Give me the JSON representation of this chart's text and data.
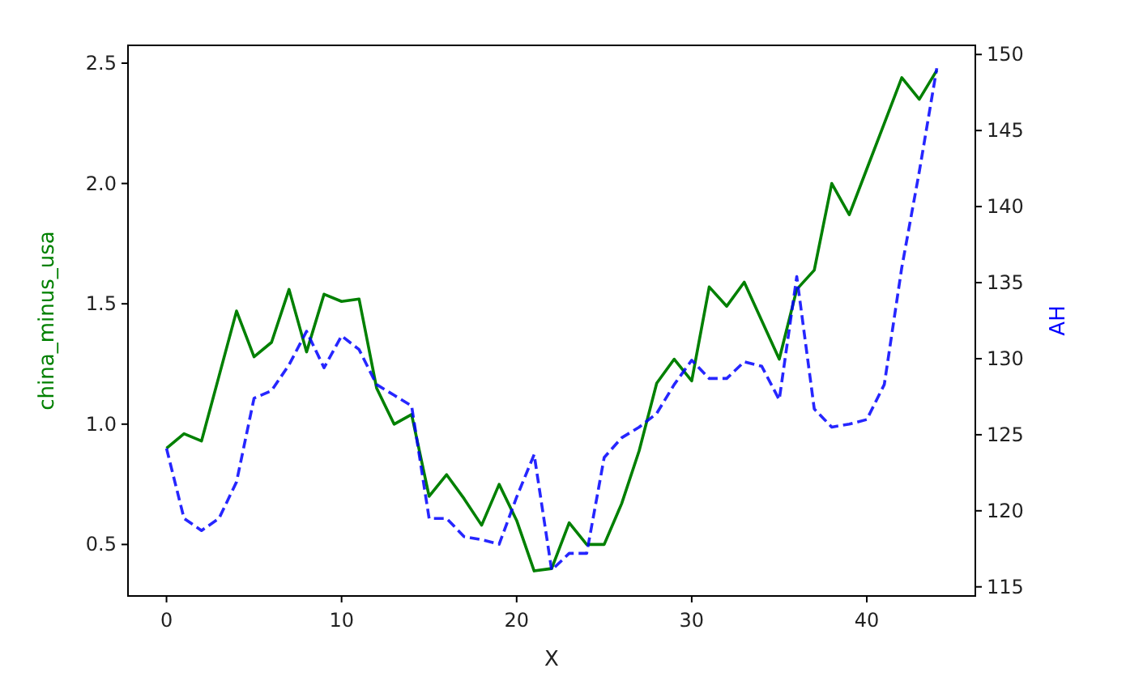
{
  "chart_data": {
    "type": "line",
    "xlabel": "X",
    "ylabel": "china_minus_usa",
    "y2label": "AH",
    "x": [
      0,
      1,
      2,
      3,
      4,
      5,
      6,
      7,
      8,
      9,
      10,
      11,
      12,
      13,
      14,
      15,
      16,
      17,
      18,
      19,
      20,
      21,
      22,
      23,
      24,
      25,
      26,
      27,
      28,
      29,
      30,
      31,
      32,
      33,
      34,
      35,
      36,
      37,
      38,
      39,
      40,
      41,
      42,
      43,
      44
    ],
    "series": [
      {
        "color": "#008000",
        "line_style": "solid",
        "values": [
          0.9,
          0.96,
          0.93,
          1.2,
          1.47,
          1.28,
          1.34,
          1.56,
          1.3,
          1.54,
          1.51,
          1.52,
          1.15,
          1.0,
          1.04,
          0.7,
          0.79,
          0.69,
          0.58,
          0.75,
          0.6,
          0.39,
          0.4,
          0.59,
          0.5,
          0.5,
          0.67,
          0.89,
          1.17,
          1.27,
          1.18,
          1.57,
          1.49,
          1.59,
          1.43,
          1.27,
          1.56,
          1.64,
          2.0,
          1.87,
          2.06,
          2.25,
          2.44,
          2.35,
          2.47
        ]
      },
      {
        "color": "#0000ff",
        "line_style": "dashed",
        "axis": "y2",
        "values": [
          124.1,
          119.5,
          118.7,
          119.5,
          121.9,
          127.4,
          127.9,
          129.6,
          131.8,
          129.4,
          131.5,
          130.6,
          128.3,
          127.6,
          126.9,
          119.5,
          119.5,
          118.3,
          118.1,
          117.8,
          120.9,
          123.7,
          116.1,
          117.2,
          117.2,
          123.5,
          124.8,
          125.5,
          126.4,
          128.3,
          129.9,
          128.7,
          128.7,
          129.8,
          129.5,
          127.3,
          135.4,
          126.7,
          125.5,
          125.7,
          126.0,
          128.3,
          136.0,
          142.3,
          149.1
        ]
      }
    ],
    "xlim": [
      -2.2,
      46.2
    ],
    "xticks": [
      0,
      10,
      20,
      30,
      40
    ],
    "ylim": [
      0.286,
      2.574
    ],
    "yticks": [
      {
        "value": 0.5,
        "label": "0.5"
      },
      {
        "value": 1.0,
        "label": "1.0"
      },
      {
        "value": 1.5,
        "label": "1.5"
      },
      {
        "value": 2.0,
        "label": "2.0"
      },
      {
        "value": 2.5,
        "label": "2.5"
      }
    ],
    "y2lim": [
      114.4,
      150.6
    ],
    "y2ticks": [
      115,
      120,
      125,
      130,
      135,
      140,
      145,
      150
    ],
    "grid": false
  }
}
